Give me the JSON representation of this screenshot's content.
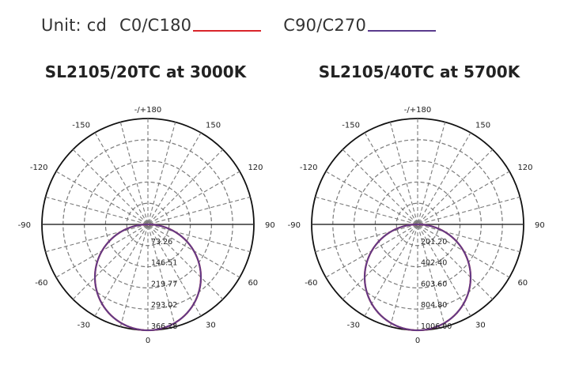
{
  "legend": {
    "unit_label": "Unit: cd",
    "series": [
      {
        "name": "C0/C180",
        "color": "#d9252a"
      },
      {
        "name": "C90/C270",
        "color": "#5a3b8c"
      }
    ]
  },
  "chart_data": [
    {
      "type": "polar",
      "title": "SL2105/20TC at 3000K",
      "angle_labels": [
        "-/+180",
        "150",
        "120",
        "90",
        "60",
        "30",
        "0",
        "-30",
        "-60",
        "-90",
        "-120",
        "-150"
      ],
      "radial_ticks": [
        "73.26",
        "146.51",
        "219.77",
        "293.02",
        "366.28"
      ],
      "rmax": 366.28,
      "series": [
        {
          "name": "C0/C180",
          "color": "#d9252a",
          "shape": "cosine",
          "peak": 366.28
        },
        {
          "name": "C90/C270",
          "color": "#5a3b8c",
          "shape": "cosine",
          "peak": 366.28
        }
      ]
    },
    {
      "type": "polar",
      "title": "SL2105/40TC at 5700K",
      "angle_labels": [
        "-/+180",
        "150",
        "120",
        "90",
        "60",
        "30",
        "0",
        "-30",
        "-60",
        "-90",
        "-120",
        "-150"
      ],
      "radial_ticks": [
        "201.20",
        "402.40",
        "603.60",
        "804.80",
        "1006.00"
      ],
      "rmax": 1006.0,
      "series": [
        {
          "name": "C0/C180",
          "color": "#d9252a",
          "shape": "cosine",
          "peak": 1006.0
        },
        {
          "name": "C90/C270",
          "color": "#5a3b8c",
          "shape": "cosine",
          "peak": 1006.0
        }
      ]
    }
  ]
}
